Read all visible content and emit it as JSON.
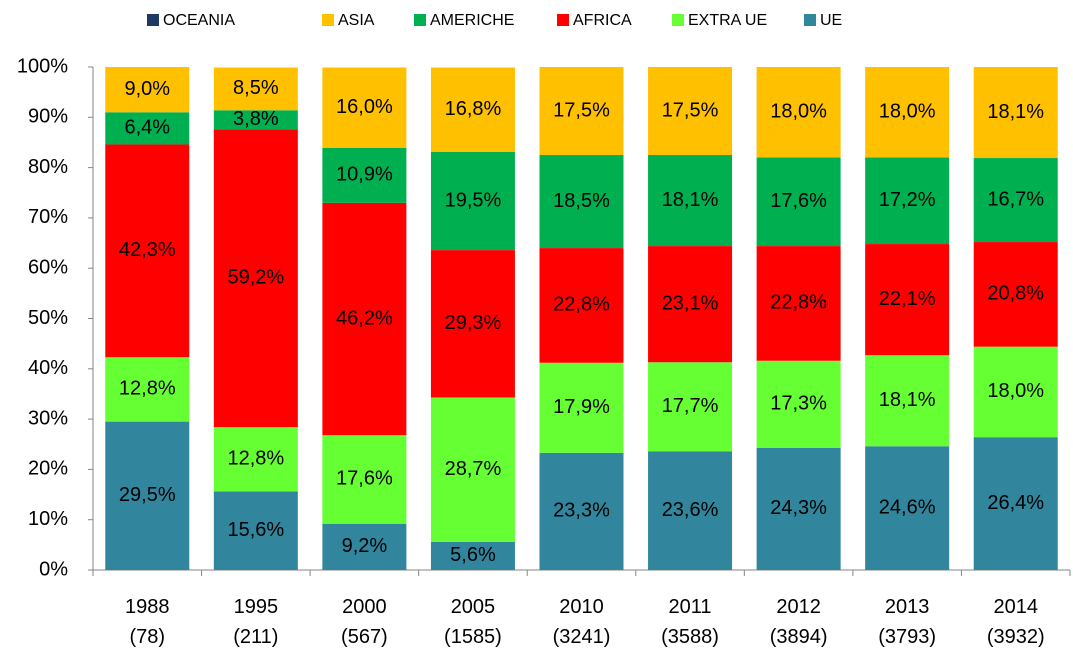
{
  "chart_data": {
    "type": "stacked_bar",
    "categories": [
      "1988 (78)",
      "1995 (211)",
      "2000 (567)",
      "2005 (1585)",
      "2010 (3241)",
      "2011 (3588)",
      "2012 (3894)",
      "2013 (3793)",
      "2014 (3932)"
    ],
    "series": [
      {
        "name": "OCEANIA",
        "color": "#1f3864",
        "values": [
          0,
          0,
          0,
          0,
          0,
          0,
          0,
          0,
          0
        ]
      },
      {
        "name": "ASIA",
        "color": "#ffc000",
        "values": [
          9.0,
          8.5,
          16.0,
          16.8,
          17.5,
          17.5,
          18.0,
          18.0,
          18.1
        ],
        "value_labels": [
          "9,0%",
          "8,5%",
          "16,0%",
          "16,8%",
          "17,5%",
          "17,5%",
          "18,0%",
          "18,0%",
          "18,1%"
        ]
      },
      {
        "name": "AMERICHE",
        "color": "#00b050",
        "values": [
          6.4,
          3.8,
          10.9,
          19.5,
          18.5,
          18.1,
          17.6,
          17.2,
          16.7
        ],
        "value_labels": [
          "6,4%",
          "3,8%",
          "10,9%",
          "19,5%",
          "18,5%",
          "18,1%",
          "17,6%",
          "17,2%",
          "16,7%"
        ]
      },
      {
        "name": "AFRICA",
        "color": "#ff0000",
        "values": [
          42.3,
          59.2,
          46.2,
          29.3,
          22.8,
          23.1,
          22.8,
          22.1,
          20.8
        ],
        "value_labels": [
          "42,3%",
          "59,2%",
          "46,2%",
          "29,3%",
          "22,8%",
          "23,1%",
          "22,8%",
          "22,1%",
          "20,8%"
        ]
      },
      {
        "name": "EXTRA UE",
        "color": "#66ff33",
        "values": [
          12.8,
          12.8,
          17.6,
          28.7,
          17.9,
          17.7,
          17.3,
          18.1,
          18.0
        ],
        "value_labels": [
          "12,8%",
          "12,8%",
          "17,6%",
          "28,7%",
          "17,9%",
          "17,7%",
          "17,3%",
          "18,1%",
          "18,0%"
        ]
      },
      {
        "name": "UE",
        "color": "#31859c",
        "values": [
          29.5,
          15.6,
          9.2,
          5.6,
          23.3,
          23.6,
          24.3,
          24.6,
          26.4
        ],
        "value_labels": [
          "29,5%",
          "15,6%",
          "9,2%",
          "5,6%",
          "23,3%",
          "23,6%",
          "24,3%",
          "24,6%",
          "26,4%"
        ]
      }
    ],
    "ylim": [
      0,
      100
    ],
    "yticks": [
      {
        "value": 0,
        "label": "0%"
      },
      {
        "value": 10,
        "label": "10%"
      },
      {
        "value": 20,
        "label": "20%"
      },
      {
        "value": 30,
        "label": "30%"
      },
      {
        "value": 40,
        "label": "40%"
      },
      {
        "value": 50,
        "label": "50%"
      },
      {
        "value": 60,
        "label": "60%"
      },
      {
        "value": 70,
        "label": "70%"
      },
      {
        "value": 80,
        "label": "80%"
      },
      {
        "value": 90,
        "label": "90%"
      },
      {
        "value": 100,
        "label": "100%"
      }
    ],
    "legend": "top",
    "grid": false
  }
}
